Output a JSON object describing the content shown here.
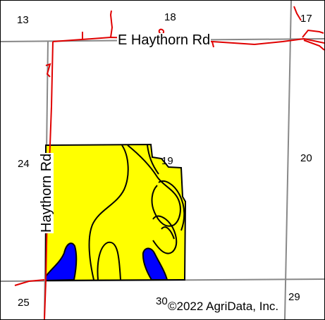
{
  "colors": {
    "section_line": "#888888",
    "road_red": "#e00000",
    "soil_fill": "#ffff00",
    "water_fill": "#0000ff",
    "boundary": "#000000"
  },
  "sections": {
    "s13": "13",
    "s18": "18",
    "s17": "17",
    "s24": "24",
    "s19": "19",
    "s20": "20",
    "s25": "25",
    "s30": "30",
    "s29": "29"
  },
  "roads": {
    "east_road": "E Haythorn Rd",
    "north_road": "Haythorn Rd"
  },
  "copyright": "©2022 AgriData, Inc."
}
